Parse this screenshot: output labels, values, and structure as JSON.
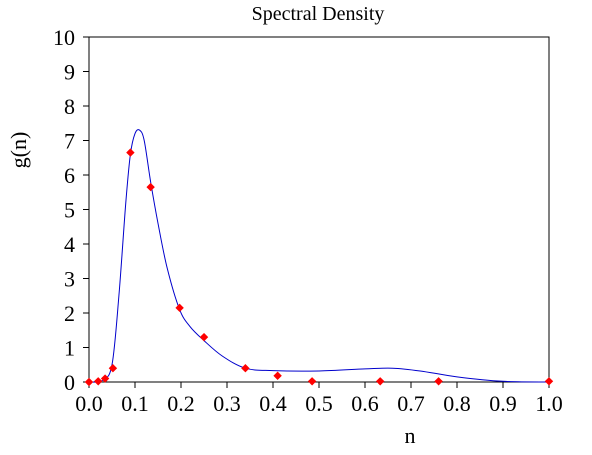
{
  "chart_data": {
    "type": "scatter",
    "title": "Spectral Density",
    "xlabel": "n",
    "ylabel": "g(n)",
    "xlim": [
      0,
      1
    ],
    "ylim": [
      0,
      10
    ],
    "xticks": [
      "0.0",
      "0.1",
      "0.2",
      "0.3",
      "0.4",
      "0.5",
      "0.6",
      "0.7",
      "0.8",
      "0.9",
      "1.0"
    ],
    "yticks": [
      "0",
      "1",
      "2",
      "3",
      "4",
      "5",
      "6",
      "7",
      "8",
      "9",
      "10"
    ],
    "grid": false,
    "series": [
      {
        "kind": "markers",
        "color": "#ff0000",
        "x": [
          0.0,
          0.02,
          0.035,
          0.052,
          0.09,
          0.134,
          0.197,
          0.25,
          0.34,
          0.41,
          0.485,
          0.633,
          0.76,
          1.0
        ],
        "y": [
          0.0,
          0.02,
          0.1,
          0.4,
          6.65,
          5.65,
          2.15,
          1.3,
          0.4,
          0.18,
          0.02,
          0.02,
          0.02,
          0.02
        ]
      },
      {
        "kind": "line",
        "color": "#0000cc",
        "x": [
          0.0,
          0.03,
          0.05,
          0.065,
          0.08,
          0.09,
          0.1,
          0.11,
          0.12,
          0.134,
          0.15,
          0.17,
          0.197,
          0.22,
          0.25,
          0.29,
          0.34,
          0.4,
          0.5,
          0.6,
          0.66,
          0.72,
          0.8,
          0.9,
          1.0
        ],
        "y": [
          0.0,
          0.05,
          0.5,
          2.5,
          5.2,
          6.6,
          7.2,
          7.3,
          7.0,
          5.8,
          4.6,
          3.3,
          2.1,
          1.6,
          1.2,
          0.75,
          0.4,
          0.33,
          0.32,
          0.38,
          0.4,
          0.32,
          0.15,
          0.02,
          0.0
        ]
      }
    ]
  }
}
